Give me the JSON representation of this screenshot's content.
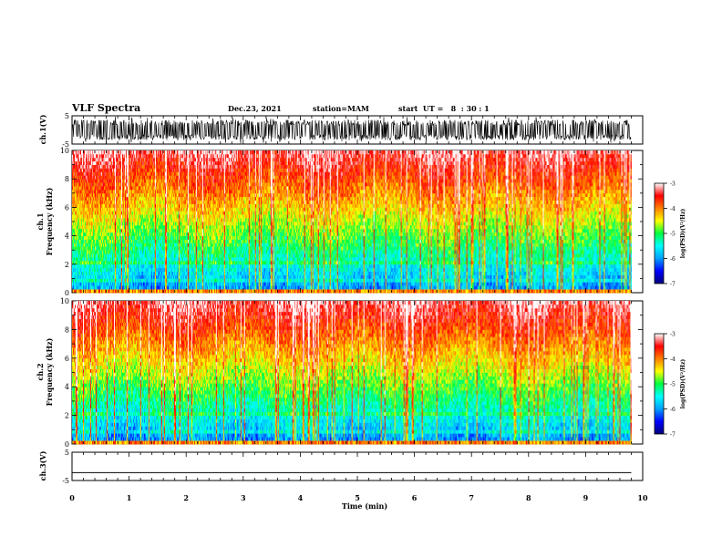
{
  "header": {
    "title": "VLF Spectra",
    "date": "Dec.23, 2021",
    "station": "station=MAM",
    "start": "start  UT =   8  : 30 : 1"
  },
  "chart_data": [
    {
      "type": "line",
      "name": "ch1-waveform",
      "ylabel": "ch.1(V)",
      "ylim": [
        -5,
        5
      ],
      "yticks": [
        {
          "v": 5,
          "label": "5"
        },
        {
          "v": -5,
          "label": "-5"
        }
      ],
      "xlim": [
        0,
        10
      ],
      "description_level": "dense noise roughly between -3.5 and 3.5 V"
    },
    {
      "type": "heatmap",
      "name": "ch1-spectrogram",
      "ylabel_line1": "ch.1",
      "ylabel_line2": "Frequency (kHz)",
      "ylim": [
        0,
        10
      ],
      "yticks": [
        "0",
        "2",
        "4",
        "6",
        "8",
        "10"
      ],
      "xlim": [
        0,
        10
      ],
      "colorbar": {
        "label": "log(PSD)(V²/Hz)",
        "range": [
          -7,
          -3
        ],
        "ticks": [
          "-3",
          "-4",
          "-5",
          "-6",
          "-7"
        ]
      }
    },
    {
      "type": "heatmap",
      "name": "ch2-spectrogram",
      "ylabel_line1": "ch.2",
      "ylabel_line2": "Frequency (kHz)",
      "ylim": [
        0,
        10
      ],
      "yticks": [
        "0",
        "2",
        "4",
        "6",
        "8",
        "10"
      ],
      "xlim": [
        0,
        10
      ],
      "colorbar": {
        "label": "log(PSD)(V²/Hz)",
        "range": [
          -7,
          -3
        ],
        "ticks": [
          "-3",
          "-4",
          "-5",
          "-6",
          "-7"
        ]
      }
    },
    {
      "type": "line",
      "name": "ch3-waveform",
      "ylabel": "ch.3(V)",
      "ylim": [
        -5,
        5
      ],
      "yticks": [
        {
          "v": 5,
          "label": "5"
        },
        {
          "v": -5,
          "label": "-5"
        }
      ],
      "xlim": [
        0,
        10
      ],
      "constant_value": -2.2
    }
  ],
  "xaxis": {
    "label": "Time (min)",
    "ticks": [
      "0",
      "1",
      "2",
      "3",
      "4",
      "5",
      "6",
      "7",
      "8",
      "9",
      "10"
    ],
    "data_end": 9.8
  },
  "colors": {
    "colormap": [
      "#00007a",
      "#0000ff",
      "#00a0ff",
      "#00ffff",
      "#00ff40",
      "#ffff00",
      "#ff8000",
      "#ff0000",
      "#ffffff"
    ]
  }
}
